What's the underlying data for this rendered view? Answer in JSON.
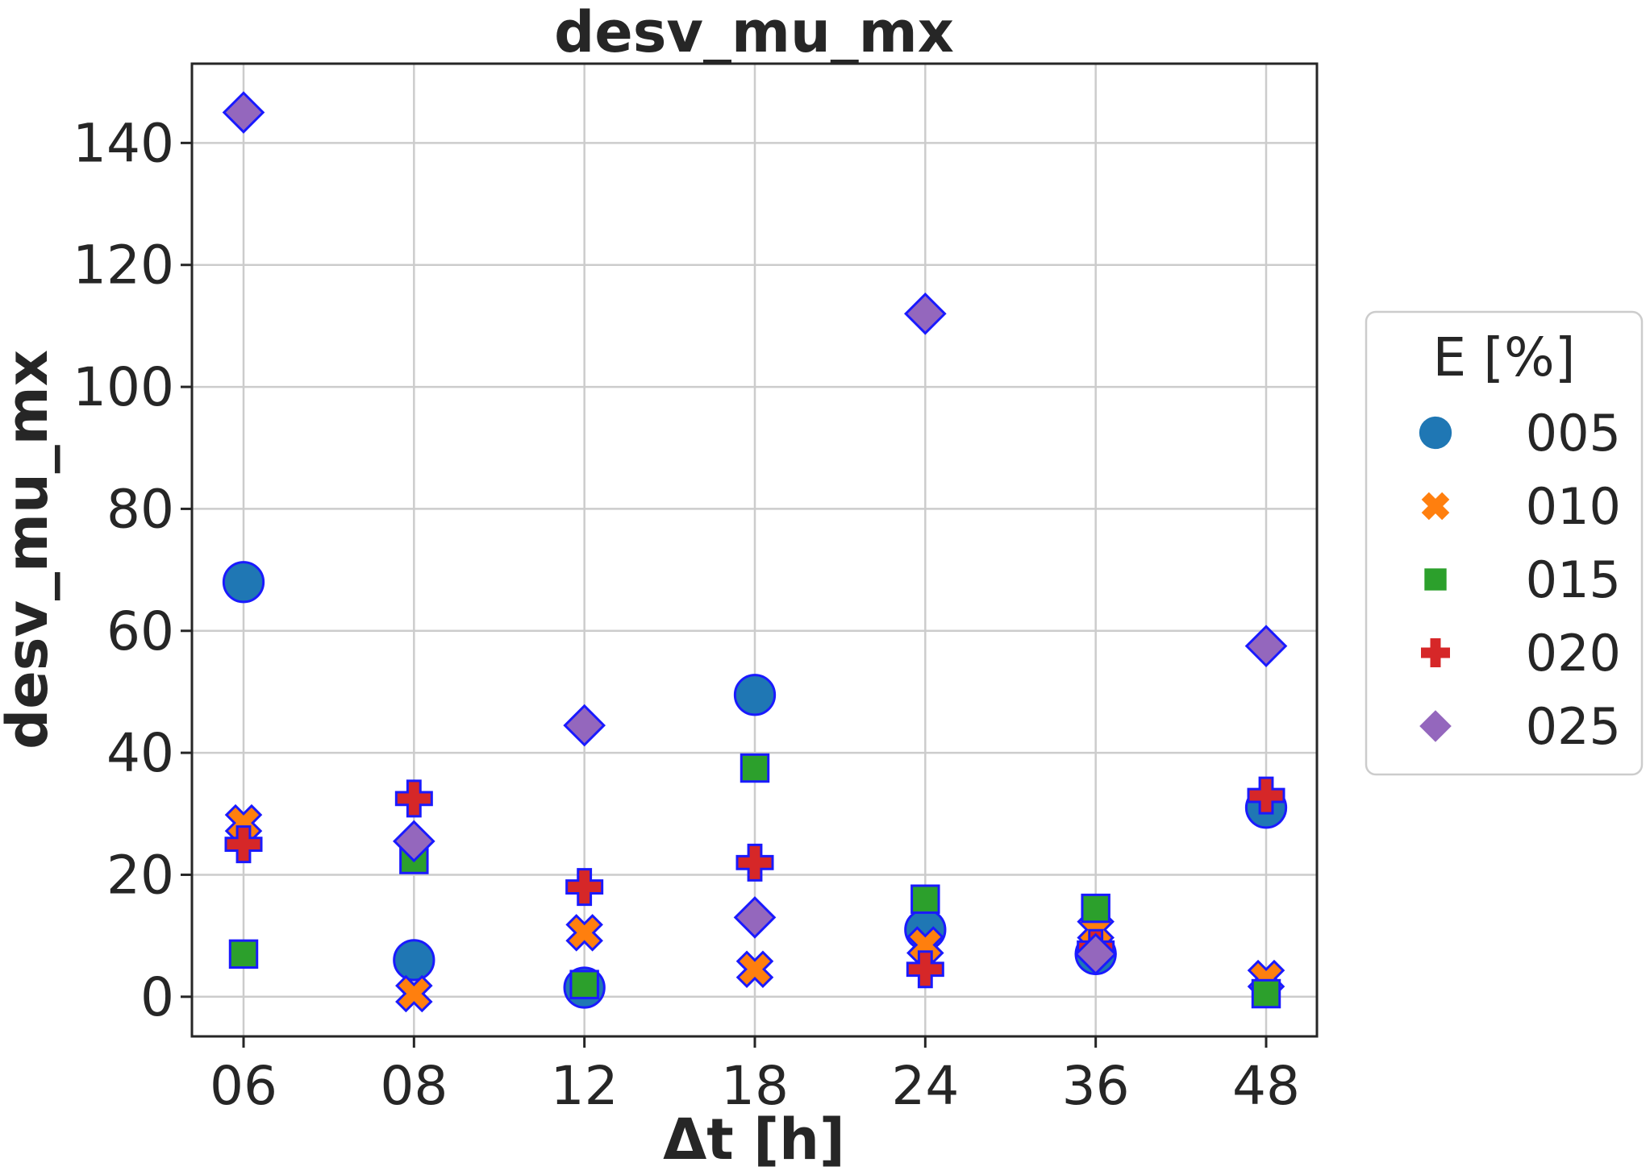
{
  "chart_data": {
    "type": "scatter",
    "title": "desv_mu_mx",
    "xlabel": "Δt [h]",
    "ylabel": "desv_mu_mx",
    "categories": [
      "06",
      "08",
      "12",
      "18",
      "24",
      "36",
      "48"
    ],
    "ylim": [
      -6.5,
      153
    ],
    "yticks": [
      0,
      20,
      40,
      60,
      80,
      100,
      120,
      140
    ],
    "grid": true,
    "legend": {
      "title": "E [%]",
      "placement": "right"
    },
    "series": [
      {
        "name": "005",
        "marker": "circle",
        "color": "#1f77b4",
        "values": [
          68,
          6,
          1.5,
          49.5,
          11,
          7,
          31
        ]
      },
      {
        "name": "010",
        "marker": "x",
        "color": "#ff7f0e",
        "values": [
          28.5,
          0.5,
          10.5,
          4.5,
          8.5,
          11,
          3
        ]
      },
      {
        "name": "015",
        "marker": "square",
        "color": "#2ca02c",
        "values": [
          7,
          22.5,
          2,
          37.5,
          16,
          14.5,
          0.5
        ]
      },
      {
        "name": "020",
        "marker": "plus",
        "color": "#d62728",
        "values": [
          25,
          32.5,
          18,
          22,
          4.5,
          8,
          33
        ]
      },
      {
        "name": "025",
        "marker": "diamond",
        "color": "#9467bd",
        "values": [
          145,
          25.5,
          44.5,
          13,
          112,
          7,
          57.5
        ]
      }
    ],
    "marker_edge_color": "#1a1aff"
  }
}
